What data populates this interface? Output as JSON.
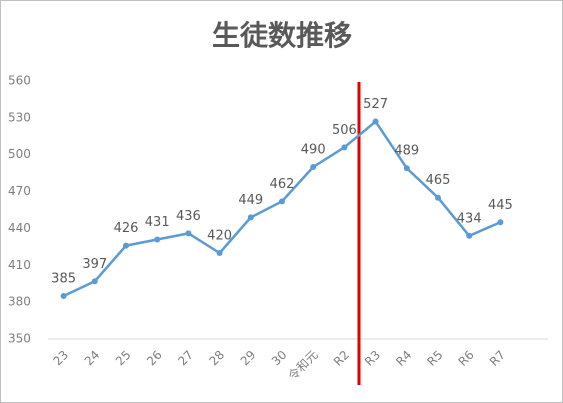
{
  "chart_data": {
    "type": "line",
    "title": "生徒数推移",
    "categories": [
      "23",
      "24",
      "25",
      "26",
      "27",
      "28",
      "29",
      "30",
      "令和元",
      "R2",
      "R3",
      "R4",
      "R5",
      "R6",
      "R7"
    ],
    "values": [
      385,
      397,
      426,
      431,
      436,
      420,
      449,
      462,
      490,
      506,
      527,
      489,
      465,
      434,
      445
    ],
    "color": "#5b9bd5",
    "ylim": [
      350,
      560
    ],
    "yticks": [
      350,
      380,
      410,
      440,
      470,
      500,
      530,
      560
    ],
    "grid": false
  }
}
